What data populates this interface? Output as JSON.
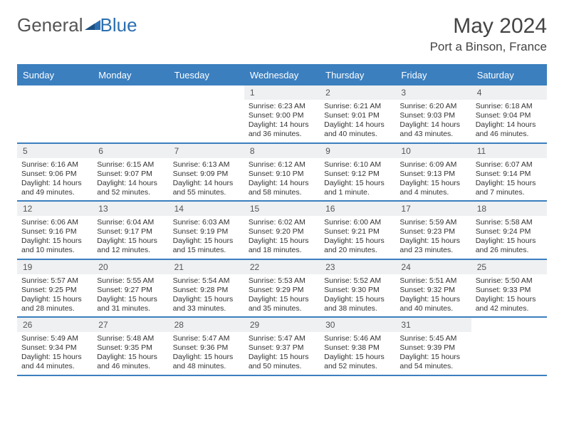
{
  "logo": {
    "part1": "General",
    "part2": "Blue"
  },
  "title": "May 2024",
  "location": "Port a Binson, France",
  "day_names": [
    "Sunday",
    "Monday",
    "Tuesday",
    "Wednesday",
    "Thursday",
    "Friday",
    "Saturday"
  ],
  "colors": {
    "header_bg": "#3b7fbf",
    "header_text": "#ffffff",
    "daynum_bg": "#eef0f2",
    "border": "#3b7fbf",
    "text": "#333333"
  },
  "weeks": [
    [
      {
        "n": "",
        "sunrise": "",
        "sunset": "",
        "daylight": ""
      },
      {
        "n": "",
        "sunrise": "",
        "sunset": "",
        "daylight": ""
      },
      {
        "n": "",
        "sunrise": "",
        "sunset": "",
        "daylight": ""
      },
      {
        "n": "1",
        "sunrise": "Sunrise: 6:23 AM",
        "sunset": "Sunset: 9:00 PM",
        "daylight": "Daylight: 14 hours and 36 minutes."
      },
      {
        "n": "2",
        "sunrise": "Sunrise: 6:21 AM",
        "sunset": "Sunset: 9:01 PM",
        "daylight": "Daylight: 14 hours and 40 minutes."
      },
      {
        "n": "3",
        "sunrise": "Sunrise: 6:20 AM",
        "sunset": "Sunset: 9:03 PM",
        "daylight": "Daylight: 14 hours and 43 minutes."
      },
      {
        "n": "4",
        "sunrise": "Sunrise: 6:18 AM",
        "sunset": "Sunset: 9:04 PM",
        "daylight": "Daylight: 14 hours and 46 minutes."
      }
    ],
    [
      {
        "n": "5",
        "sunrise": "Sunrise: 6:16 AM",
        "sunset": "Sunset: 9:06 PM",
        "daylight": "Daylight: 14 hours and 49 minutes."
      },
      {
        "n": "6",
        "sunrise": "Sunrise: 6:15 AM",
        "sunset": "Sunset: 9:07 PM",
        "daylight": "Daylight: 14 hours and 52 minutes."
      },
      {
        "n": "7",
        "sunrise": "Sunrise: 6:13 AM",
        "sunset": "Sunset: 9:09 PM",
        "daylight": "Daylight: 14 hours and 55 minutes."
      },
      {
        "n": "8",
        "sunrise": "Sunrise: 6:12 AM",
        "sunset": "Sunset: 9:10 PM",
        "daylight": "Daylight: 14 hours and 58 minutes."
      },
      {
        "n": "9",
        "sunrise": "Sunrise: 6:10 AM",
        "sunset": "Sunset: 9:12 PM",
        "daylight": "Daylight: 15 hours and 1 minute."
      },
      {
        "n": "10",
        "sunrise": "Sunrise: 6:09 AM",
        "sunset": "Sunset: 9:13 PM",
        "daylight": "Daylight: 15 hours and 4 minutes."
      },
      {
        "n": "11",
        "sunrise": "Sunrise: 6:07 AM",
        "sunset": "Sunset: 9:14 PM",
        "daylight": "Daylight: 15 hours and 7 minutes."
      }
    ],
    [
      {
        "n": "12",
        "sunrise": "Sunrise: 6:06 AM",
        "sunset": "Sunset: 9:16 PM",
        "daylight": "Daylight: 15 hours and 10 minutes."
      },
      {
        "n": "13",
        "sunrise": "Sunrise: 6:04 AM",
        "sunset": "Sunset: 9:17 PM",
        "daylight": "Daylight: 15 hours and 12 minutes."
      },
      {
        "n": "14",
        "sunrise": "Sunrise: 6:03 AM",
        "sunset": "Sunset: 9:19 PM",
        "daylight": "Daylight: 15 hours and 15 minutes."
      },
      {
        "n": "15",
        "sunrise": "Sunrise: 6:02 AM",
        "sunset": "Sunset: 9:20 PM",
        "daylight": "Daylight: 15 hours and 18 minutes."
      },
      {
        "n": "16",
        "sunrise": "Sunrise: 6:00 AM",
        "sunset": "Sunset: 9:21 PM",
        "daylight": "Daylight: 15 hours and 20 minutes."
      },
      {
        "n": "17",
        "sunrise": "Sunrise: 5:59 AM",
        "sunset": "Sunset: 9:23 PM",
        "daylight": "Daylight: 15 hours and 23 minutes."
      },
      {
        "n": "18",
        "sunrise": "Sunrise: 5:58 AM",
        "sunset": "Sunset: 9:24 PM",
        "daylight": "Daylight: 15 hours and 26 minutes."
      }
    ],
    [
      {
        "n": "19",
        "sunrise": "Sunrise: 5:57 AM",
        "sunset": "Sunset: 9:25 PM",
        "daylight": "Daylight: 15 hours and 28 minutes."
      },
      {
        "n": "20",
        "sunrise": "Sunrise: 5:55 AM",
        "sunset": "Sunset: 9:27 PM",
        "daylight": "Daylight: 15 hours and 31 minutes."
      },
      {
        "n": "21",
        "sunrise": "Sunrise: 5:54 AM",
        "sunset": "Sunset: 9:28 PM",
        "daylight": "Daylight: 15 hours and 33 minutes."
      },
      {
        "n": "22",
        "sunrise": "Sunrise: 5:53 AM",
        "sunset": "Sunset: 9:29 PM",
        "daylight": "Daylight: 15 hours and 35 minutes."
      },
      {
        "n": "23",
        "sunrise": "Sunrise: 5:52 AM",
        "sunset": "Sunset: 9:30 PM",
        "daylight": "Daylight: 15 hours and 38 minutes."
      },
      {
        "n": "24",
        "sunrise": "Sunrise: 5:51 AM",
        "sunset": "Sunset: 9:32 PM",
        "daylight": "Daylight: 15 hours and 40 minutes."
      },
      {
        "n": "25",
        "sunrise": "Sunrise: 5:50 AM",
        "sunset": "Sunset: 9:33 PM",
        "daylight": "Daylight: 15 hours and 42 minutes."
      }
    ],
    [
      {
        "n": "26",
        "sunrise": "Sunrise: 5:49 AM",
        "sunset": "Sunset: 9:34 PM",
        "daylight": "Daylight: 15 hours and 44 minutes."
      },
      {
        "n": "27",
        "sunrise": "Sunrise: 5:48 AM",
        "sunset": "Sunset: 9:35 PM",
        "daylight": "Daylight: 15 hours and 46 minutes."
      },
      {
        "n": "28",
        "sunrise": "Sunrise: 5:47 AM",
        "sunset": "Sunset: 9:36 PM",
        "daylight": "Daylight: 15 hours and 48 minutes."
      },
      {
        "n": "29",
        "sunrise": "Sunrise: 5:47 AM",
        "sunset": "Sunset: 9:37 PM",
        "daylight": "Daylight: 15 hours and 50 minutes."
      },
      {
        "n": "30",
        "sunrise": "Sunrise: 5:46 AM",
        "sunset": "Sunset: 9:38 PM",
        "daylight": "Daylight: 15 hours and 52 minutes."
      },
      {
        "n": "31",
        "sunrise": "Sunrise: 5:45 AM",
        "sunset": "Sunset: 9:39 PM",
        "daylight": "Daylight: 15 hours and 54 minutes."
      },
      {
        "n": "",
        "sunrise": "",
        "sunset": "",
        "daylight": ""
      }
    ]
  ]
}
